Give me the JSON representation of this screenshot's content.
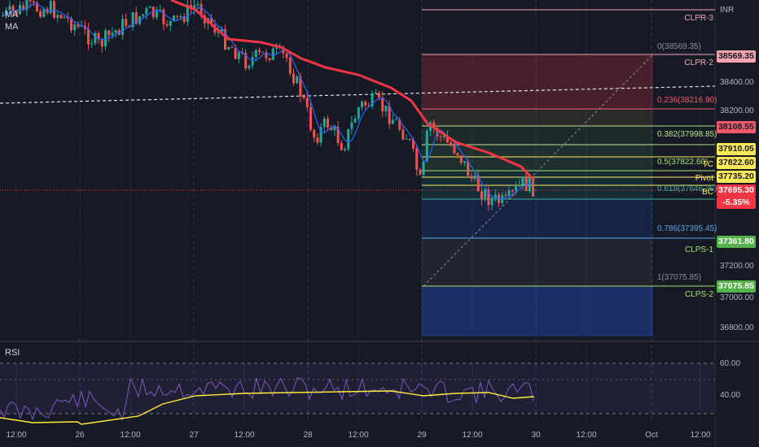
{
  "indicators": {
    "ma1": "MA",
    "ma2": "MA",
    "rsi": "RSI"
  },
  "currency": "INR",
  "price_axis": [
    "38400.00",
    "38200.00",
    "37200.00",
    "37000.00",
    "36800.00"
  ],
  "rsi_axis": [
    "60.00",
    "40.00"
  ],
  "time_axis": [
    "12:00",
    "26",
    "12:00",
    "27",
    "12:00",
    "28",
    "12:00",
    "29",
    "12:00",
    "30",
    "12:00",
    "Oct",
    "12:00"
  ],
  "fib_levels": [
    {
      "label": "0(38569.35)",
      "color": "#8c8f99"
    },
    {
      "label": "0.236(38216.90)",
      "color": "#f05a6b"
    },
    {
      "label": "0.382(37998.85)",
      "color": "#b7e48c"
    },
    {
      "label": "0.5(37822.60)",
      "color": "#a7e26b"
    },
    {
      "label": "0.618(37646.35)",
      "color": "#3fb0a0"
    },
    {
      "label": "0.786(37395.45)",
      "color": "#5ea6e8"
    },
    {
      "label": "1(37075.85)",
      "color": "#8c8f99"
    }
  ],
  "pivot_labels": [
    {
      "label": "CLPR-3",
      "color": "#f0a8b6"
    },
    {
      "label": "CLPR-2",
      "color": "#f0a8b6"
    },
    {
      "label": "TC",
      "color": "#ffe95b"
    },
    {
      "label": "Pivot",
      "color": "#ffe95b"
    },
    {
      "label": "BC",
      "color": "#ffe95b"
    },
    {
      "label": "CLPS-1",
      "color": "#a7e26b"
    },
    {
      "label": "CLPS-2",
      "color": "#a7e26b"
    }
  ],
  "price_tags": [
    {
      "text": "38569.35",
      "bg": "#f3a3ae",
      "fg": "#161a25"
    },
    {
      "text": "38108.55",
      "bg": "#f05a6b",
      "fg": "#161a25"
    },
    {
      "text": "37910.05",
      "bg": "#ffe95b",
      "fg": "#161a25"
    },
    {
      "text": "37822.60",
      "bg": "#ffe95b",
      "fg": "#161a25"
    },
    {
      "text": "37735.20",
      "bg": "#ffe95b",
      "fg": "#161a25"
    },
    {
      "text": "37695.30",
      "bg": "#f23645",
      "fg": "#ffffff"
    },
    {
      "text": "-5.35%",
      "bg": "#f23645",
      "fg": "#ffffff"
    },
    {
      "text": "37361.80",
      "bg": "#56b24a",
      "fg": "#ffffff"
    },
    {
      "text": "37075.85",
      "bg": "#56b24a",
      "fg": "#ffffff"
    }
  ],
  "colors": {
    "background": "#161a25",
    "up": "#26a69a",
    "down": "#ef5350",
    "ma_slow": "#f23645",
    "ma_fast": "#2962ff",
    "rsi_line": "#7e57c2",
    "rsi_ma": "#ffeb3b"
  }
}
